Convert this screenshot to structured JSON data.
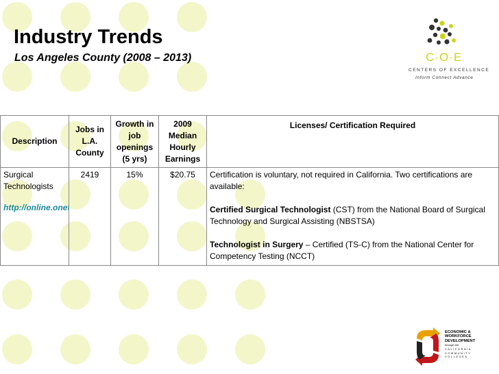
{
  "slide": {
    "title": "Industry Trends",
    "subtitle": "Los Angeles County (2008 – 2013)"
  },
  "colors": {
    "dot": "#f3f6c9",
    "accent": "#c9d61c",
    "link": "#1a8a9c",
    "logo_dark": "#333333"
  },
  "coe_logo": {
    "icon": "molecule-dots-icon",
    "letters": "C·O·E",
    "line1": "CENTERS OF EXCELLENCE",
    "line2": "Inform  Connect  Advance"
  },
  "table": {
    "headers": [
      "Description",
      "Jobs in L.A. County",
      "Growth in job openings (5 yrs)",
      "2009 Median Hourly Earnings",
      "Licenses/ Certification Required"
    ],
    "row": {
      "description": "Surgical Technologists",
      "link": "http://online.onetcenter.org",
      "jobs": "2419",
      "growth": "15%",
      "earnings": "$20.75",
      "cert_intro": "Certification is voluntary, not required in California. Two certifications are available:",
      "cert1_name": "Certified Surgical Technologist",
      "cert1_rest": " (CST) from the National Board of Surgical Technology and Surgical Assisting (NBSTSA)",
      "cert2_name": "Technologist in Surgery",
      "cert2_rest": " – Certified (TS-C) from the National Center for Competency Testing (NCCT)"
    }
  },
  "ewd_logo": {
    "icon": "recycle-arrows-icon",
    "line1": "ECONOMIC &",
    "line2": "WORKFORCE",
    "line3": "DEVELOPMENT",
    "line4": "through the",
    "line5": "CALIFORNIA",
    "line6": "COMMUNITY",
    "line7": "COLLEGES"
  }
}
